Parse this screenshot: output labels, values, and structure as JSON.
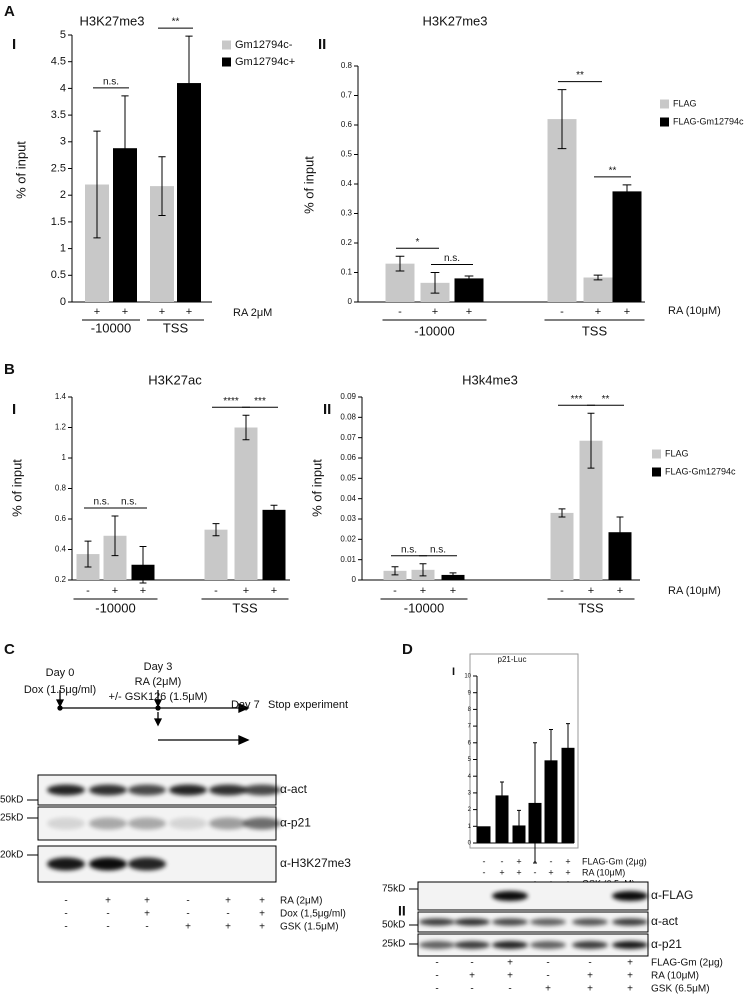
{
  "panel_labels": [
    "A",
    "B",
    "C",
    "D"
  ],
  "chart_data": [
    {
      "type": "bar",
      "panel": "I",
      "title": "H3K27me3",
      "ylabel": "% of input",
      "ylim": [
        0,
        5
      ],
      "yticks": [
        0,
        0.5,
        1,
        1.5,
        2,
        2.5,
        3,
        3.5,
        4,
        4.5,
        5
      ],
      "condition_label": "RA 2μM",
      "legend": [
        {
          "name": "Gm12794c-",
          "color": "#c8c8c8"
        },
        {
          "name": "Gm12794c+",
          "color": "#000000"
        }
      ],
      "groups": [
        {
          "label": "-10000",
          "bars": [
            {
              "sign": "+",
              "value": 2.2,
              "error": 1.0,
              "color": "#c8c8c8",
              "sig": "n.s."
            },
            {
              "sign": "+",
              "value": 2.88,
              "error": 0.98,
              "color": "#000000"
            }
          ]
        },
        {
          "label": "TSS",
          "bars": [
            {
              "sign": "+",
              "value": 2.17,
              "error": 0.55,
              "color": "#c8c8c8",
              "sig": "**"
            },
            {
              "sign": "+",
              "value": 4.1,
              "error": 0.88,
              "color": "#000000"
            }
          ]
        }
      ]
    },
    {
      "type": "bar",
      "panel": "II",
      "title": "H3K27me3",
      "ylabel": "% of input",
      "ylim": [
        0,
        0.8
      ],
      "yticks": [
        0,
        0.1,
        0.2,
        0.3,
        0.4,
        0.5,
        0.6,
        0.7,
        0.8
      ],
      "condition_label": "RA (10μM)",
      "legend": [
        {
          "name": "FLAG",
          "color": "#c8c8c8"
        },
        {
          "name": "FLAG-Gm12794c",
          "color": "#000000"
        }
      ],
      "groups": [
        {
          "label": "-10000",
          "bars": [
            {
              "sign": "-",
              "value": 0.13,
              "error": 0.025,
              "color": "#c8c8c8",
              "sig": "*"
            },
            {
              "sign": "+",
              "value": 0.065,
              "error": 0.035,
              "color": "#c8c8c8",
              "sig": "n.s."
            },
            {
              "sign": "+",
              "value": 0.08,
              "error": 0.008,
              "color": "#000000"
            }
          ]
        },
        {
          "label": "TSS",
          "bars": [
            {
              "sign": "-",
              "value": 0.62,
              "error": 0.1,
              "color": "#c8c8c8",
              "sig": "**"
            },
            {
              "sign": "+",
              "value": 0.083,
              "error": 0.008,
              "color": "#c8c8c8",
              "sig": "**"
            },
            {
              "sign": "+",
              "value": 0.375,
              "error": 0.022,
              "color": "#000000"
            }
          ]
        }
      ]
    },
    {
      "type": "bar",
      "panel": "I",
      "title": "H3K27ac",
      "ylabel": "% of input",
      "ylim": [
        0.2,
        1.4
      ],
      "yticks": [
        0.2,
        0.4,
        0.6,
        0.8,
        1,
        1.2,
        1.4
      ],
      "groups": [
        {
          "label": "-10000",
          "bars": [
            {
              "sign": "-",
              "value": 0.37,
              "error": 0.085,
              "color": "#c8c8c8",
              "sig": "n.s."
            },
            {
              "sign": "+",
              "value": 0.49,
              "error": 0.13,
              "color": "#c8c8c8",
              "sig": "n.s."
            },
            {
              "sign": "+",
              "value": 0.3,
              "error": 0.12,
              "color": "#000000"
            }
          ]
        },
        {
          "label": "TSS",
          "bars": [
            {
              "sign": "-",
              "value": 0.53,
              "error": 0.04,
              "color": "#c8c8c8",
              "sig": "****"
            },
            {
              "sign": "+",
              "value": 1.2,
              "error": 0.08,
              "color": "#c8c8c8",
              "sig": "***"
            },
            {
              "sign": "+",
              "value": 0.66,
              "error": 0.03,
              "color": "#000000"
            }
          ]
        }
      ]
    },
    {
      "type": "bar",
      "panel": "II",
      "title": "H3k4me3",
      "ylabel": "% of input",
      "ylim": [
        0,
        0.09
      ],
      "yticks": [
        0,
        0.01,
        0.02,
        0.03,
        0.04,
        0.05,
        0.06,
        0.07,
        0.08,
        0.09
      ],
      "condition_label": "RA (10μM)",
      "legend": [
        {
          "name": "FLAG",
          "color": "#c8c8c8"
        },
        {
          "name": "FLAG-Gm12794c",
          "color": "#000000"
        }
      ],
      "groups": [
        {
          "label": "-10000",
          "bars": [
            {
              "sign": "-",
              "value": 0.0045,
              "error": 0.002,
              "color": "#c8c8c8",
              "sig": "n.s."
            },
            {
              "sign": "+",
              "value": 0.005,
              "error": 0.003,
              "color": "#c8c8c8",
              "sig": "n.s."
            },
            {
              "sign": "+",
              "value": 0.0025,
              "error": 0.001,
              "color": "#000000"
            }
          ]
        },
        {
          "label": "TSS",
          "bars": [
            {
              "sign": "-",
              "value": 0.033,
              "error": 0.002,
              "color": "#c8c8c8",
              "sig": "***"
            },
            {
              "sign": "+",
              "value": 0.0685,
              "error": 0.0135,
              "color": "#c8c8c8",
              "sig": "**"
            },
            {
              "sign": "+",
              "value": 0.0235,
              "error": 0.0075,
              "color": "#000000"
            }
          ]
        }
      ]
    },
    {
      "type": "bar",
      "panel": "I",
      "title": "p21-Luc",
      "ylim": [
        0,
        10
      ],
      "yticks": [
        0,
        1,
        2,
        3,
        4,
        5,
        6,
        7,
        8,
        9,
        10
      ],
      "groups": [
        {
          "bars": [
            {
              "value": 1,
              "color": "#000000"
            },
            {
              "value": 2.85,
              "error": 0.8,
              "color": "#000000"
            },
            {
              "value": 1.05,
              "error": 0.9,
              "color": "#000000"
            },
            {
              "value": 2.4,
              "error": 3.6,
              "color": "#000000"
            },
            {
              "value": 4.95,
              "error": 1.85,
              "color": "#000000"
            },
            {
              "value": 5.7,
              "error": 1.45,
              "color": "#000000"
            }
          ]
        }
      ],
      "condition_rows": [
        {
          "label": "FLAG-Gm (2μg)",
          "signs": [
            "-",
            "-",
            "+",
            "-",
            "-",
            "+"
          ]
        },
        {
          "label": "RA (10μM)",
          "signs": [
            "-",
            "+",
            "+",
            "-",
            "+",
            "+"
          ]
        },
        {
          "label": "GSK (6.5μM)",
          "signs": [
            "-",
            "-",
            "-",
            "+",
            "+",
            "+"
          ]
        }
      ]
    }
  ],
  "timeline": {
    "day0": "Day 0",
    "dox": "Dox (1.5μg/ml)",
    "day3": "Day 3",
    "ra": "RA (2μM)",
    "gsk": "+/- GSK126 (1.5μM)",
    "day7": "Day 7",
    "stop": "Stop experiment"
  },
  "blots": [
    {
      "markers": [
        "50kD",
        "25kD",
        "20kD"
      ],
      "antibodies": [
        "α-act",
        "α-p21",
        "α-H3K27me3"
      ],
      "conditions": [
        {
          "label": "RA (2μM)",
          "signs": [
            "-",
            "+",
            "+",
            "-",
            "+",
            "+"
          ]
        },
        {
          "label": "Dox (1,5μg/ml)",
          "signs": [
            "-",
            "-",
            "+",
            "-",
            "-",
            "+"
          ]
        },
        {
          "label": "GSK (1.5μM)",
          "signs": [
            "-",
            "-",
            "-",
            "+",
            "+",
            "+"
          ]
        }
      ]
    },
    {
      "panel": "II",
      "markers": [
        "75kD",
        "50kD",
        "25kD"
      ],
      "antibodies": [
        "α-FLAG",
        "α-act",
        "α-p21"
      ],
      "conditions": [
        {
          "label": "FLAG-Gm (2μg)",
          "signs": [
            "-",
            "-",
            "+",
            "-",
            "-",
            "+"
          ]
        },
        {
          "label": "RA (10μM)",
          "signs": [
            "-",
            "+",
            "+",
            "-",
            "+",
            "+"
          ]
        },
        {
          "label": "GSK (6.5μM)",
          "signs": [
            "-",
            "-",
            "-",
            "+",
            "+",
            "+"
          ]
        }
      ]
    }
  ]
}
